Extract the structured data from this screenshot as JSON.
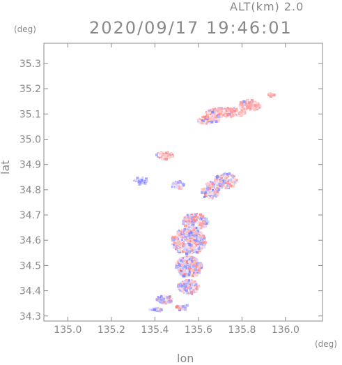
{
  "header": {
    "alt_label": "ALT(km)  2.0",
    "timestamp": "2020/09/17 19:46:01"
  },
  "axes": {
    "y_unit": "(deg)",
    "x_unit": "(deg)"
  },
  "chart_data": {
    "type": "heatmap",
    "title": "2020/09/17 19:46:01",
    "xlabel": "lon",
    "ylabel": "lat",
    "xlim": [
      134.89,
      136.17
    ],
    "ylim": [
      34.28,
      35.38
    ],
    "xticks": [
      "135.0",
      "135.2",
      "135.4",
      "135.6",
      "135.8",
      "136.0"
    ],
    "yticks": [
      "34.3",
      "34.4",
      "34.5",
      "34.6",
      "34.7",
      "34.8",
      "34.9",
      "35.0",
      "35.1",
      "35.2",
      "35.3"
    ],
    "grid": false,
    "colors": {
      "positive": "#ff5a5a",
      "negative": "#5a5aff",
      "frame": "#888888"
    },
    "blobs": [
      {
        "lon": 135.72,
        "lat": 35.11,
        "rlon": 0.09,
        "rlat": 0.02,
        "n": 60,
        "bias": 0.85
      },
      {
        "lon": 135.83,
        "lat": 35.14,
        "rlon": 0.05,
        "rlat": 0.02,
        "n": 40,
        "bias": 0.85
      },
      {
        "lon": 135.64,
        "lat": 35.08,
        "rlon": 0.05,
        "rlat": 0.015,
        "n": 25,
        "bias": 0.85
      },
      {
        "lon": 135.93,
        "lat": 35.18,
        "rlon": 0.015,
        "rlat": 0.006,
        "n": 8,
        "bias": 0.95
      },
      {
        "lon": 135.44,
        "lat": 34.94,
        "rlon": 0.04,
        "rlat": 0.015,
        "n": 18,
        "bias": 0.8
      },
      {
        "lon": 135.33,
        "lat": 34.84,
        "rlon": 0.03,
        "rlat": 0.015,
        "n": 10,
        "bias": 0.1
      },
      {
        "lon": 135.72,
        "lat": 34.84,
        "rlon": 0.05,
        "rlat": 0.03,
        "n": 45,
        "bias": 0.6
      },
      {
        "lon": 135.65,
        "lat": 34.8,
        "rlon": 0.04,
        "rlat": 0.035,
        "n": 35,
        "bias": 0.55
      },
      {
        "lon": 135.5,
        "lat": 34.82,
        "rlon": 0.03,
        "rlat": 0.02,
        "n": 12,
        "bias": 0.4
      },
      {
        "lon": 135.58,
        "lat": 34.68,
        "rlon": 0.06,
        "rlat": 0.03,
        "n": 60,
        "bias": 0.5
      },
      {
        "lon": 135.55,
        "lat": 34.6,
        "rlon": 0.08,
        "rlat": 0.05,
        "n": 150,
        "bias": 0.5
      },
      {
        "lon": 135.55,
        "lat": 34.5,
        "rlon": 0.06,
        "rlat": 0.04,
        "n": 100,
        "bias": 0.5
      },
      {
        "lon": 135.55,
        "lat": 34.42,
        "rlon": 0.05,
        "rlat": 0.03,
        "n": 45,
        "bias": 0.45
      },
      {
        "lon": 135.44,
        "lat": 34.37,
        "rlon": 0.04,
        "rlat": 0.015,
        "n": 20,
        "bias": 0.3
      },
      {
        "lon": 135.4,
        "lat": 34.33,
        "rlon": 0.03,
        "rlat": 0.006,
        "n": 12,
        "bias": 0.2
      },
      {
        "lon": 135.52,
        "lat": 34.34,
        "rlon": 0.03,
        "rlat": 0.012,
        "n": 10,
        "bias": 0.35
      }
    ]
  }
}
